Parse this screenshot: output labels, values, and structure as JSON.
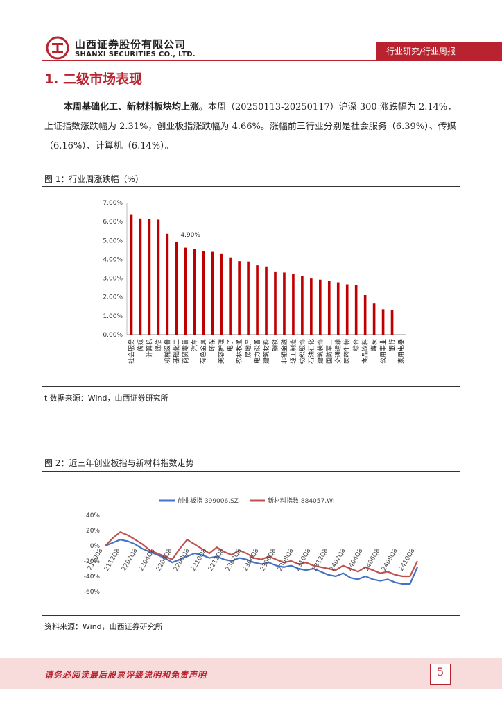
{
  "header": {
    "company_cn": "山西证券股份有限公司",
    "company_en": "SHANXI SECURITIES CO., LTD.",
    "banner": "行业研究/行业周报",
    "brand_color": "#b8232f"
  },
  "section": {
    "title": "1. 二级市场表现"
  },
  "paragraph": {
    "lead": "本周基础化工、新材料板块均上涨。",
    "body": "本周（20250113-20250117）沪深 300 涨跌幅为 2.14%，上证指数涨跌幅为 2.31%，创业板指涨跌幅为 4.66%。涨幅前三行业分别是社会服务（6.39%）、传媒（6.16%）、计算机（6.14%）。"
  },
  "figure1": {
    "title": "图 1：行业周涨跌幅（%）",
    "source": "t 数据来源：Wind，山西证券研究所",
    "annotation": "4.90%"
  },
  "figure2": {
    "title": "图 2：近三年创业板指与新材料指数走势",
    "source": "资料来源：Wind，山西证券研究所"
  },
  "chart_data": [
    {
      "type": "bar",
      "categories": [
        "社会服务",
        "传媒",
        "计算机",
        "通信",
        "机械设备",
        "基础化工",
        "商贸零售",
        "汽车",
        "有色金属",
        "环保",
        "美容护理",
        "电子",
        "农林牧渔",
        "房地产",
        "电力设备",
        "建筑材料",
        "钢铁",
        "非银金融",
        "轻工制造",
        "纺织服饰",
        "石油石化",
        "建筑装饰",
        "国防军工",
        "交通运输",
        "医药生物",
        "综合",
        "食品饮料",
        "煤炭",
        "公用事业",
        "银行",
        "家用电器"
      ],
      "values": [
        6.39,
        6.16,
        6.14,
        6.1,
        5.35,
        4.9,
        4.62,
        4.55,
        4.45,
        4.4,
        4.28,
        4.1,
        3.9,
        3.88,
        3.68,
        3.62,
        3.32,
        3.3,
        3.22,
        3.12,
        2.98,
        2.92,
        2.85,
        2.78,
        2.67,
        2.62,
        2.1,
        1.65,
        1.35,
        1.3,
        0.0
      ],
      "ylim": [
        0,
        7
      ],
      "yticks": [
        "0.00%",
        "1.00%",
        "2.00%",
        "3.00%",
        "4.00%",
        "5.00%",
        "6.00%",
        "7.00%"
      ],
      "color": "#c00000",
      "grid": false
    },
    {
      "type": "line",
      "x_ticks": [
        "211008",
        "2112Q8",
        "2202Q8",
        "2204Q8",
        "2206Q8",
        "2208Q8",
        "2210Q8",
        "2212Q8",
        "2302Q8",
        "2304Q8",
        "2306Q8",
        "2308Q8",
        "2310Q8",
        "2312Q8",
        "2402Q8",
        "2404Q8",
        "2406Q8",
        "2408Q8",
        "2410Q8"
      ],
      "yticks": [
        "40%",
        "20%",
        "0%",
        "-20%",
        "-40%",
        "-60%"
      ],
      "ylim": [
        -60,
        40
      ],
      "legend_position": "top",
      "series": [
        {
          "name": "创业板指 399006.SZ",
          "color": "#4472c4",
          "values": [
            0,
            4,
            8,
            6,
            2,
            -4,
            -8,
            -12,
            -16,
            -22,
            -18,
            -14,
            -10,
            -12,
            -16,
            -14,
            -18,
            -20,
            -16,
            -18,
            -22,
            -24,
            -22,
            -26,
            -28,
            -26,
            -30,
            -32,
            -30,
            -34,
            -38,
            -40,
            -36,
            -42,
            -44,
            -40,
            -44,
            -46,
            -44,
            -48,
            -50,
            -50,
            -28
          ]
        },
        {
          "name": "新材料指数 884057.WI",
          "color": "#c0504d",
          "values": [
            0,
            10,
            18,
            14,
            8,
            2,
            -6,
            -10,
            -14,
            -18,
            -4,
            8,
            2,
            -4,
            -10,
            -2,
            -8,
            -12,
            -6,
            -10,
            -16,
            -18,
            -14,
            -18,
            -22,
            -20,
            -24,
            -22,
            -26,
            -28,
            -30,
            -32,
            -26,
            -30,
            -34,
            -28,
            -32,
            -36,
            -34,
            -38,
            -40,
            -40,
            -20
          ]
        }
      ]
    }
  ],
  "footer": {
    "disclaimer": "请务必阅读最后股票评级说明和免责声明",
    "page": "5"
  }
}
